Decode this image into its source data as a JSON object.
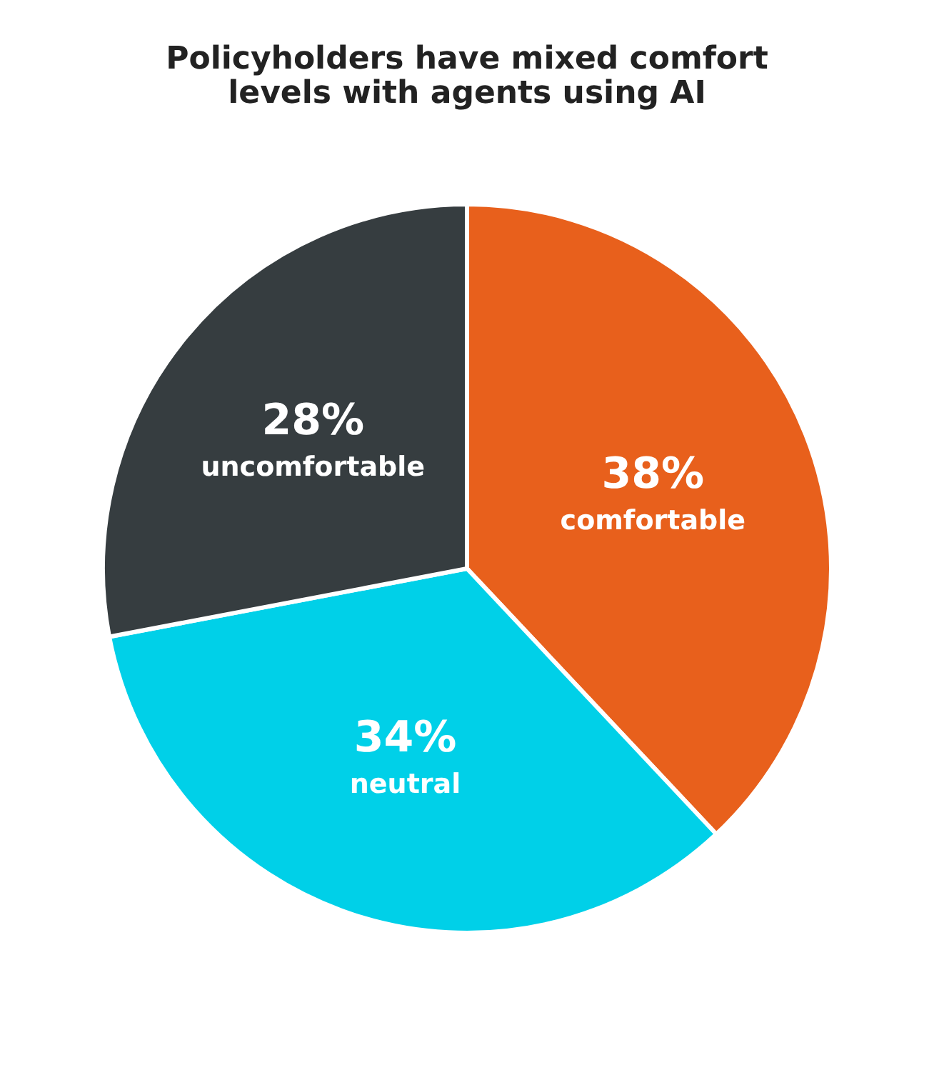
{
  "chart_data": {
    "type": "pie",
    "title": "Policyholders have mixed comfort levels with agents using AI",
    "categories": [
      "comfortable",
      "neutral",
      "uncomfortable"
    ],
    "values": [
      38,
      34,
      28
    ],
    "value_labels": [
      "38%",
      "34%",
      "28%"
    ],
    "colors": [
      "#e8601c",
      "#00d0e8",
      "#363d40"
    ],
    "legend": false
  }
}
